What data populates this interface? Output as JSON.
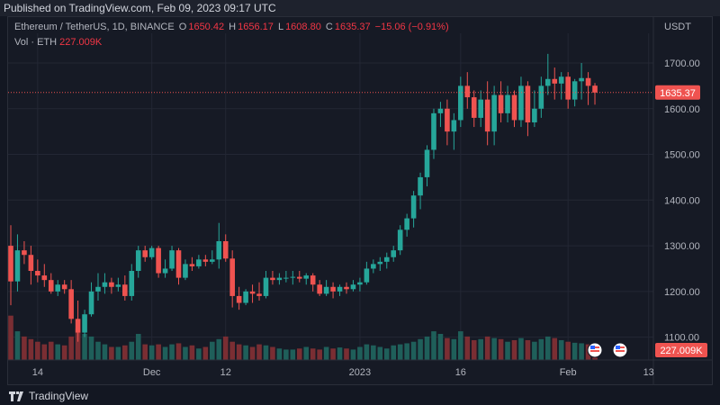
{
  "header": {
    "published": "Published on TradingView.com, Feb 09, 2023 09:17 UTC"
  },
  "legend": {
    "symbol": "Ethereum / TetherUS, 1D, BINANCE",
    "open_label": "O",
    "open": "1650.42",
    "high_label": "H",
    "high": "1656.17",
    "low_label": "L",
    "low": "1608.80",
    "close_label": "C",
    "close": "1635.37",
    "change": "−15.06 (−0.91%)",
    "vol_label": "Vol · ETH",
    "vol_value": "227.009K"
  },
  "footer": {
    "brand": "TradingView"
  },
  "colors": {
    "up": "#26a69a",
    "down": "#ef5350",
    "bg": "#161a25",
    "grid": "#232734",
    "vol_up": "#1f5f5a",
    "vol_down": "#7a2e33"
  },
  "chart_data": {
    "type": "candlestick",
    "currency_label": "USDT",
    "y_ticks": [
      1100,
      1200,
      1300,
      1400,
      1500,
      1600,
      1700
    ],
    "y_tick_labels": [
      "1100.00",
      "1200.00",
      "1300.00",
      "1400.00",
      "1500.00",
      "1600.00",
      "1700.00"
    ],
    "ylim": [
      1050,
      1765
    ],
    "last_price": 1635.37,
    "last_price_label": "1635.37",
    "volume_label": "227.009K",
    "x_tick_labels": [
      {
        "label": "14",
        "date": "2022-11-14"
      },
      {
        "label": "Dec",
        "date": "2022-12-01"
      },
      {
        "label": "12",
        "date": "2022-12-12"
      },
      {
        "label": "2023",
        "date": "2023-01-01"
      },
      {
        "label": "16",
        "date": "2023-01-16"
      },
      {
        "label": "Feb",
        "date": "2023-02-01"
      },
      {
        "label": "13",
        "date": "2023-02-13"
      }
    ],
    "first_date": "2022-11-10",
    "candles": [
      [
        1300,
        1345,
        1170,
        1222
      ],
      [
        1222,
        1325,
        1200,
        1290
      ],
      [
        1290,
        1310,
        1260,
        1280
      ],
      [
        1280,
        1300,
        1215,
        1245
      ],
      [
        1245,
        1270,
        1220,
        1235
      ],
      [
        1235,
        1260,
        1210,
        1225
      ],
      [
        1225,
        1240,
        1195,
        1200
      ],
      [
        1200,
        1225,
        1190,
        1215
      ],
      [
        1215,
        1225,
        1195,
        1205
      ],
      [
        1205,
        1225,
        1130,
        1140
      ],
      [
        1140,
        1180,
        1090,
        1110
      ],
      [
        1110,
        1160,
        1100,
        1150
      ],
      [
        1150,
        1220,
        1145,
        1200
      ],
      [
        1200,
        1240,
        1180,
        1210
      ],
      [
        1210,
        1240,
        1195,
        1220
      ],
      [
        1220,
        1230,
        1195,
        1210
      ],
      [
        1210,
        1230,
        1200,
        1215
      ],
      [
        1215,
        1235,
        1180,
        1190
      ],
      [
        1190,
        1260,
        1180,
        1245
      ],
      [
        1245,
        1300,
        1230,
        1290
      ],
      [
        1290,
        1300,
        1265,
        1275
      ],
      [
        1275,
        1300,
        1270,
        1295
      ],
      [
        1295,
        1300,
        1230,
        1240
      ],
      [
        1240,
        1270,
        1230,
        1250
      ],
      [
        1250,
        1300,
        1245,
        1290
      ],
      [
        1290,
        1295,
        1215,
        1230
      ],
      [
        1230,
        1270,
        1225,
        1260
      ],
      [
        1260,
        1275,
        1245,
        1255
      ],
      [
        1255,
        1280,
        1250,
        1270
      ],
      [
        1270,
        1280,
        1255,
        1265
      ],
      [
        1265,
        1290,
        1260,
        1270
      ],
      [
        1270,
        1350,
        1250,
        1310
      ],
      [
        1310,
        1325,
        1265,
        1272
      ],
      [
        1272,
        1290,
        1165,
        1190
      ],
      [
        1190,
        1210,
        1160,
        1175
      ],
      [
        1175,
        1205,
        1170,
        1200
      ],
      [
        1200,
        1215,
        1175,
        1195
      ],
      [
        1195,
        1220,
        1180,
        1190
      ],
      [
        1190,
        1245,
        1185,
        1230
      ],
      [
        1230,
        1245,
        1215,
        1225
      ],
      [
        1225,
        1240,
        1215,
        1230
      ],
      [
        1230,
        1245,
        1220,
        1230
      ],
      [
        1230,
        1245,
        1215,
        1232
      ],
      [
        1232,
        1245,
        1220,
        1228
      ],
      [
        1228,
        1240,
        1215,
        1235
      ],
      [
        1235,
        1240,
        1200,
        1215
      ],
      [
        1215,
        1225,
        1190,
        1195
      ],
      [
        1195,
        1225,
        1190,
        1210
      ],
      [
        1210,
        1220,
        1185,
        1200
      ],
      [
        1200,
        1215,
        1190,
        1210
      ],
      [
        1210,
        1220,
        1195,
        1205
      ],
      [
        1205,
        1225,
        1200,
        1215
      ],
      [
        1215,
        1230,
        1200,
        1220
      ],
      [
        1220,
        1265,
        1215,
        1250
      ],
      [
        1250,
        1270,
        1240,
        1260
      ],
      [
        1260,
        1275,
        1245,
        1265
      ],
      [
        1265,
        1285,
        1250,
        1275
      ],
      [
        1275,
        1300,
        1265,
        1290
      ],
      [
        1290,
        1345,
        1280,
        1335
      ],
      [
        1335,
        1370,
        1320,
        1360
      ],
      [
        1360,
        1420,
        1340,
        1410
      ],
      [
        1410,
        1460,
        1380,
        1450
      ],
      [
        1450,
        1520,
        1430,
        1510
      ],
      [
        1510,
        1600,
        1490,
        1590
      ],
      [
        1590,
        1615,
        1560,
        1600
      ],
      [
        1600,
        1620,
        1520,
        1550
      ],
      [
        1550,
        1590,
        1510,
        1575
      ],
      [
        1575,
        1670,
        1560,
        1650
      ],
      [
        1650,
        1680,
        1600,
        1625
      ],
      [
        1625,
        1640,
        1560,
        1580
      ],
      [
        1580,
        1640,
        1560,
        1620
      ],
      [
        1620,
        1660,
        1520,
        1550
      ],
      [
        1550,
        1650,
        1520,
        1630
      ],
      [
        1630,
        1660,
        1570,
        1590
      ],
      [
        1590,
        1650,
        1570,
        1630
      ],
      [
        1630,
        1640,
        1560,
        1575
      ],
      [
        1575,
        1670,
        1560,
        1650
      ],
      [
        1650,
        1660,
        1540,
        1570
      ],
      [
        1570,
        1640,
        1560,
        1600
      ],
      [
        1600,
        1670,
        1580,
        1650
      ],
      [
        1650,
        1720,
        1630,
        1665
      ],
      [
        1665,
        1690,
        1620,
        1655
      ],
      [
        1655,
        1680,
        1620,
        1670
      ],
      [
        1670,
        1680,
        1600,
        1620
      ],
      [
        1620,
        1665,
        1605,
        1660
      ],
      [
        1660,
        1700,
        1620,
        1667
      ],
      [
        1667,
        1680,
        1608,
        1650
      ],
      [
        1650.42,
        1656.17,
        1608.8,
        1635.37
      ]
    ],
    "volumes": [
      0.85,
      0.55,
      0.45,
      0.4,
      0.35,
      0.3,
      0.35,
      0.3,
      0.28,
      0.45,
      0.6,
      0.5,
      0.45,
      0.35,
      0.3,
      0.25,
      0.25,
      0.28,
      0.35,
      0.5,
      0.3,
      0.28,
      0.3,
      0.25,
      0.3,
      0.32,
      0.25,
      0.28,
      0.22,
      0.25,
      0.35,
      0.4,
      0.45,
      0.35,
      0.3,
      0.28,
      0.25,
      0.3,
      0.28,
      0.25,
      0.22,
      0.2,
      0.2,
      0.22,
      0.25,
      0.22,
      0.2,
      0.25,
      0.22,
      0.24,
      0.22,
      0.2,
      0.25,
      0.3,
      0.28,
      0.25,
      0.22,
      0.28,
      0.3,
      0.32,
      0.35,
      0.4,
      0.45,
      0.55,
      0.5,
      0.42,
      0.4,
      0.55,
      0.45,
      0.38,
      0.4,
      0.45,
      0.42,
      0.4,
      0.35,
      0.38,
      0.42,
      0.38,
      0.35,
      0.4,
      0.45,
      0.42,
      0.38,
      0.35,
      0.33,
      0.32,
      0.3,
      0.22
    ]
  }
}
